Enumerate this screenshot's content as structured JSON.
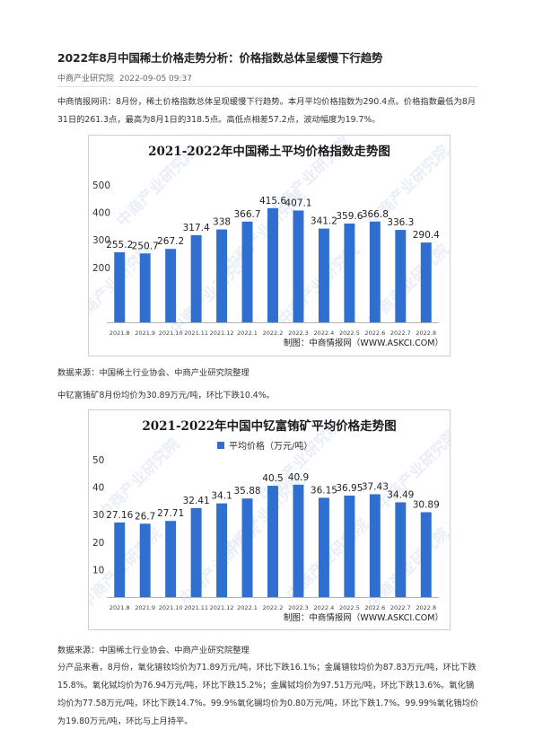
{
  "article": {
    "title": "2022年8月中国稀土价格走势分析：价格指数总体呈缓慢下行趋势",
    "source": "中商产业研究院",
    "date": "2022-09-05 09:37",
    "intro": "中商情报网讯：8月份，稀土价格指数总体呈现缓慢下行趋势。本月平均价格指数为290.4点。价格指数最低为8月31日的261.3点，最高为8月1日的318.5点。高低点相差57.2点，波动幅度为19.7%。",
    "source_note_1": "数据来源：中国稀土行业协会、中商产业研究院整理",
    "para2": "中钇富铕矿8月份均价为30.89万元/吨，环比下跌10.4%。",
    "source_note_2": "数据来源：中国稀土行业协会、中商产业研究院整理",
    "para3": "分产品来看，8月份，氧化镨钕均价为71.89万元/吨，环比下跌16.1%；金属镨钕均价为87.83万元/吨，环比下跌15.8%。氧化铽均价为76.94万元/吨，环比下跌15.2%；金属铽均价为97.51万元/吨，环比下跌13.6%。氧化镝均价为77.58万元/吨，环比下跌14.7%。99.9%氧化镧均价为0.80万元/吨，环比下跌1.7%。99.99%氧化铕均价为19.80万元/吨，环比与上月持平。"
  },
  "chart_data": [
    {
      "type": "bar",
      "title": "2021-2022年中国稀土平均价格指数走势图",
      "categories": [
        "2021.8",
        "2021.9",
        "2021.10",
        "2021.11",
        "2021.12",
        "2022.1",
        "2022.2",
        "2022.3",
        "2022.4",
        "2022.5",
        "2022.6",
        "2022.7",
        "2022.8"
      ],
      "values": [
        255.2,
        250.7,
        267.2,
        317.4,
        338,
        366.7,
        415.6,
        407.1,
        341.2,
        359.6,
        366.8,
        336.3,
        290.4
      ],
      "labels": [
        "255.2",
        "250.7",
        "267.2",
        "317.4",
        "338",
        "366.7",
        "415.6",
        "407.1",
        "341.2",
        "359.6",
        "366.8",
        "336.3",
        "290.4"
      ],
      "yticks": [
        200,
        300,
        400,
        500
      ],
      "ylim": [
        0,
        500
      ],
      "grid": false,
      "credit": "制图：中商情报网（WWW.ASKCI.COM）",
      "watermark": "中商产业研究院",
      "bar_color": "#2f6fd0"
    },
    {
      "type": "bar",
      "title": "2021-2022年中国中钇富铕矿平均价格走势图",
      "legend": "平均价格（万元/吨）",
      "legend_position": "top-center",
      "categories": [
        "2021.8",
        "2021.9",
        "2021.10",
        "2021.11",
        "2021.12",
        "2022.1",
        "2022.2",
        "2022.3",
        "2022.4",
        "2022.5",
        "2022.6",
        "2022.7",
        "2022.8"
      ],
      "values": [
        27.16,
        26.7,
        27.71,
        32.41,
        34.1,
        35.88,
        40.5,
        40.9,
        36.15,
        36.95,
        37.43,
        34.49,
        30.89
      ],
      "labels": [
        "27.16",
        "26.7",
        "27.71",
        "32.41",
        "34.1",
        "35.88",
        "40.5",
        "40.9",
        "36.15",
        "36.95",
        "37.43",
        "34.49",
        "30.89"
      ],
      "yticks": [
        10,
        20,
        30,
        40,
        50
      ],
      "ylim": [
        0,
        50
      ],
      "grid": false,
      "credit": "制图：中商情报网（WWW.ASKCI.COM）",
      "watermark": "中商产业研究院",
      "bar_color": "#2f6fd0"
    }
  ]
}
